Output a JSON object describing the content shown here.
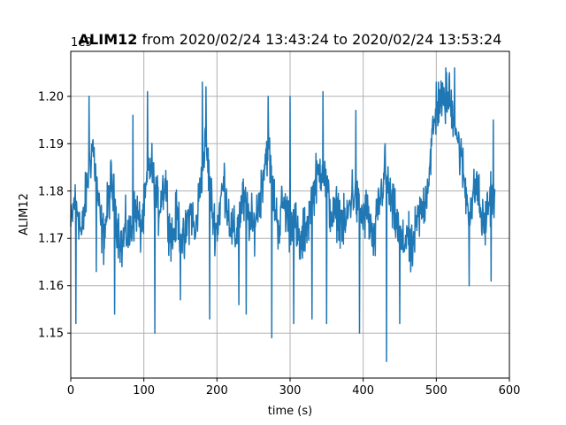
{
  "chart_data": {
    "type": "line",
    "title_bold": "ALIM12",
    "title_rest": " from 2020/02/24 13:43:24 to 2020/02/24 13:53:24",
    "xlabel": "time (s)",
    "ylabel": "ALIM12",
    "y_offset_text": "1e9",
    "xlim": [
      0,
      600
    ],
    "ylim": [
      1.1405,
      1.2095
    ],
    "x_ticks": [
      0,
      100,
      200,
      300,
      400,
      500,
      600
    ],
    "x_tick_labels": [
      "0",
      "100",
      "200",
      "300",
      "400",
      "500",
      "600"
    ],
    "y_ticks": [
      1.15,
      1.16,
      1.17,
      1.18,
      1.19,
      1.2
    ],
    "y_tick_labels": [
      "1.15",
      "1.16",
      "1.17",
      "1.18",
      "1.19",
      "1.20"
    ],
    "grid": true,
    "color": "#1f77b4",
    "series": [
      {
        "values_knots": [
          [
            0,
            1.172
          ],
          [
            5,
            1.178
          ],
          [
            10,
            1.176
          ],
          [
            15,
            1.17
          ],
          [
            20,
            1.178
          ],
          [
            25,
            1.185
          ],
          [
            30,
            1.19
          ],
          [
            35,
            1.182
          ],
          [
            40,
            1.174
          ],
          [
            45,
            1.17
          ],
          [
            50,
            1.176
          ],
          [
            55,
            1.182
          ],
          [
            60,
            1.177
          ],
          [
            65,
            1.172
          ],
          [
            70,
            1.168
          ],
          [
            75,
            1.172
          ],
          [
            80,
            1.17
          ],
          [
            85,
            1.174
          ],
          [
            90,
            1.176
          ],
          [
            95,
            1.172
          ],
          [
            100,
            1.175
          ],
          [
            105,
            1.183
          ],
          [
            110,
            1.186
          ],
          [
            115,
            1.18
          ],
          [
            120,
            1.176
          ],
          [
            125,
            1.18
          ],
          [
            130,
            1.182
          ],
          [
            135,
            1.172
          ],
          [
            140,
            1.17
          ],
          [
            145,
            1.175
          ],
          [
            150,
            1.172
          ],
          [
            155,
            1.168
          ],
          [
            160,
            1.174
          ],
          [
            165,
            1.176
          ],
          [
            170,
            1.17
          ],
          [
            175,
            1.178
          ],
          [
            180,
            1.186
          ],
          [
            185,
            1.19
          ],
          [
            190,
            1.182
          ],
          [
            195,
            1.174
          ],
          [
            200,
            1.172
          ],
          [
            205,
            1.178
          ],
          [
            210,
            1.182
          ],
          [
            215,
            1.176
          ],
          [
            220,
            1.172
          ],
          [
            225,
            1.17
          ],
          [
            230,
            1.174
          ],
          [
            235,
            1.178
          ],
          [
            240,
            1.176
          ],
          [
            245,
            1.174
          ],
          [
            250,
            1.172
          ],
          [
            255,
            1.176
          ],
          [
            260,
            1.18
          ],
          [
            265,
            1.186
          ],
          [
            270,
            1.19
          ],
          [
            275,
            1.182
          ],
          [
            280,
            1.176
          ],
          [
            285,
            1.172
          ],
          [
            290,
            1.178
          ],
          [
            295,
            1.176
          ],
          [
            300,
            1.172
          ],
          [
            305,
            1.176
          ],
          [
            310,
            1.17
          ],
          [
            315,
            1.168
          ],
          [
            320,
            1.172
          ],
          [
            325,
            1.174
          ],
          [
            330,
            1.178
          ],
          [
            335,
            1.182
          ],
          [
            340,
            1.184
          ],
          [
            345,
            1.186
          ],
          [
            350,
            1.18
          ],
          [
            355,
            1.176
          ],
          [
            360,
            1.174
          ],
          [
            365,
            1.176
          ],
          [
            370,
            1.174
          ],
          [
            375,
            1.172
          ],
          [
            380,
            1.176
          ],
          [
            385,
            1.18
          ],
          [
            390,
            1.178
          ],
          [
            395,
            1.176
          ],
          [
            400,
            1.174
          ],
          [
            405,
            1.176
          ],
          [
            410,
            1.172
          ],
          [
            415,
            1.168
          ],
          [
            420,
            1.176
          ],
          [
            425,
            1.18
          ],
          [
            430,
            1.184
          ],
          [
            435,
            1.18
          ],
          [
            440,
            1.176
          ],
          [
            445,
            1.174
          ],
          [
            450,
            1.17
          ],
          [
            455,
            1.168
          ],
          [
            460,
            1.172
          ],
          [
            465,
            1.166
          ],
          [
            470,
            1.17
          ],
          [
            475,
            1.174
          ],
          [
            480,
            1.176
          ],
          [
            485,
            1.178
          ],
          [
            490,
            1.184
          ],
          [
            495,
            1.192
          ],
          [
            500,
            1.196
          ],
          [
            505,
            1.2
          ],
          [
            510,
            1.198
          ],
          [
            515,
            1.2
          ],
          [
            520,
            1.198
          ],
          [
            525,
            1.196
          ],
          [
            530,
            1.19
          ],
          [
            535,
            1.186
          ],
          [
            540,
            1.18
          ],
          [
            545,
            1.176
          ],
          [
            550,
            1.178
          ],
          [
            555,
            1.182
          ],
          [
            560,
            1.176
          ],
          [
            565,
            1.172
          ],
          [
            570,
            1.176
          ],
          [
            575,
            1.18
          ],
          [
            580,
            1.177
          ]
        ],
        "noise_amplitude": 0.008,
        "spikes": [
          [
            7,
            1.152
          ],
          [
            25,
            1.2
          ],
          [
            35,
            1.163
          ],
          [
            60,
            1.154
          ],
          [
            85,
            1.196
          ],
          [
            105,
            1.201
          ],
          [
            115,
            1.15
          ],
          [
            150,
            1.157
          ],
          [
            180,
            1.203
          ],
          [
            185,
            1.202
          ],
          [
            190,
            1.153
          ],
          [
            230,
            1.156
          ],
          [
            240,
            1.154
          ],
          [
            270,
            1.2
          ],
          [
            275,
            1.149
          ],
          [
            300,
            1.2
          ],
          [
            305,
            1.152
          ],
          [
            330,
            1.153
          ],
          [
            345,
            1.201
          ],
          [
            350,
            1.152
          ],
          [
            390,
            1.197
          ],
          [
            395,
            1.15
          ],
          [
            430,
            1.19
          ],
          [
            432,
            1.144
          ],
          [
            450,
            1.152
          ],
          [
            500,
            1.203
          ],
          [
            513,
            1.206
          ],
          [
            518,
            1.205
          ],
          [
            525,
            1.206
          ],
          [
            545,
            1.16
          ],
          [
            575,
            1.161
          ],
          [
            578,
            1.195
          ]
        ]
      }
    ]
  }
}
